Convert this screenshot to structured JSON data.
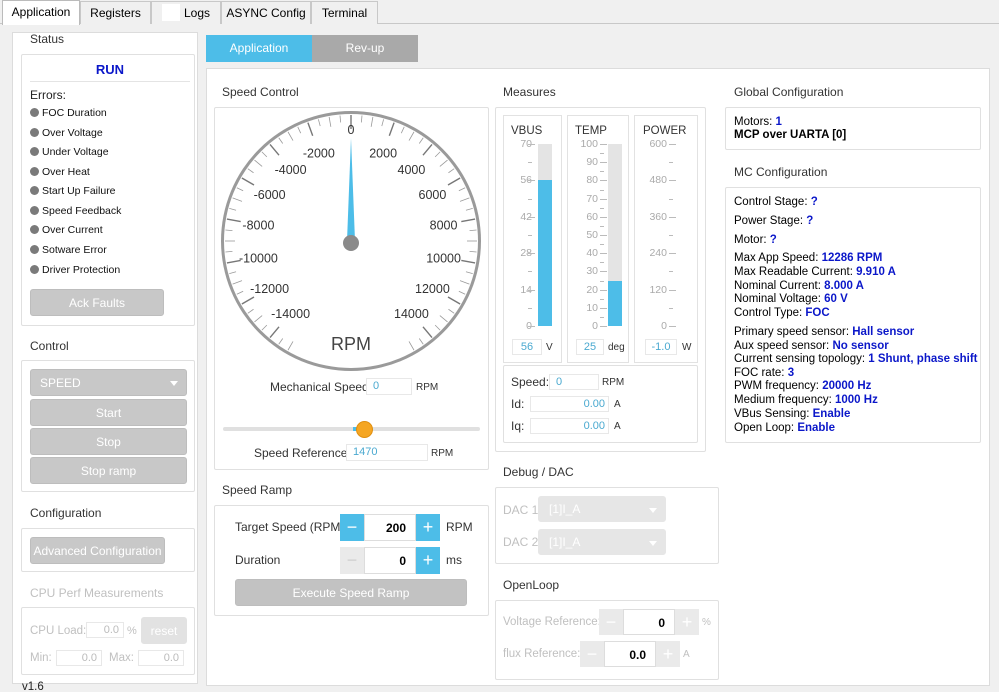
{
  "tabs": [
    "Application",
    "Registers",
    "Logs",
    "ASYNC Config",
    "Terminal"
  ],
  "active_tab": 0,
  "status": {
    "title": "Status",
    "state": "RUN",
    "errors_label": "Errors:",
    "errors": [
      "FOC Duration",
      "Over Voltage",
      "Under Voltage",
      "Over Heat",
      "Start Up Failure",
      "Speed Feedback",
      "Over Current",
      "Sotware Error",
      "Driver Protection"
    ],
    "ack_label": "Ack Faults"
  },
  "control": {
    "title": "Control",
    "mode": "SPEED",
    "start": "Start",
    "stop": "Stop",
    "stop_ramp": "Stop ramp"
  },
  "configuration": {
    "title": "Configuration",
    "advanced": "Advanced Configuration"
  },
  "cpu": {
    "title": "CPU Perf Measurements",
    "load_label": "CPU Load:",
    "load_value": "0.0",
    "load_unit": "%",
    "reset": "reset",
    "min_label": "Min:",
    "min_value": "0.0",
    "max_label": "Max:",
    "max_value": "0.0"
  },
  "version": "v1.6",
  "panel_tabs": [
    "Application",
    "Rev-up"
  ],
  "speed_control": {
    "title": "Speed Control",
    "gauge_labels": [
      "0",
      "2000",
      "4000",
      "6000",
      "8000",
      "10000",
      "12000",
      "14000",
      "-2000",
      "-4000",
      "-6000",
      "-8000",
      "-10000",
      "-12000",
      "-14000"
    ],
    "gauge_unit": "RPM",
    "needle_value": 0,
    "mech_label": "Mechanical Speed:",
    "mech_value": "0",
    "mech_unit": "RPM",
    "slider_fraction": 0.55,
    "ref_label": "Speed Reference:",
    "ref_value": "1470",
    "ref_unit": "RPM"
  },
  "speed_ramp": {
    "title": "Speed Ramp",
    "target_label": "Target Speed (RPM)",
    "target_value": "200",
    "target_unit": "RPM",
    "duration_label": "Duration",
    "duration_value": "0",
    "duration_unit": "ms",
    "execute": "Execute Speed Ramp"
  },
  "measures": {
    "title": "Measures",
    "meters": [
      {
        "name": "VBUS",
        "ticks": [
          "70",
          "56",
          "42",
          "28",
          "14",
          "0"
        ],
        "max": 70,
        "fill_value": 56,
        "value": "56",
        "unit": "V"
      },
      {
        "name": "TEMP",
        "ticks": [
          "100",
          "90",
          "80",
          "70",
          "60",
          "50",
          "40",
          "30",
          "20",
          "10",
          "0"
        ],
        "max": 100,
        "fill_value": 25,
        "value": "25",
        "unit": "deg"
      },
      {
        "name": "POWER",
        "ticks": [
          "600",
          "480",
          "360",
          "240",
          "120",
          "0"
        ],
        "max": 600,
        "fill_value": 0,
        "value": "-1.0",
        "unit": "W"
      }
    ],
    "speed_label": "Speed:",
    "speed_value": "0",
    "speed_unit": "RPM",
    "id_label": "Id:",
    "id_value": "0.00",
    "id_unit": "A",
    "iq_label": "Iq:",
    "iq_value": "0.00",
    "iq_unit": "A"
  },
  "debug": {
    "title": "Debug / DAC",
    "dac1_label": "DAC 1",
    "dac1_value": "[1]I_A",
    "dac2_label": "DAC 2",
    "dac2_value": "[1]I_A"
  },
  "openloop": {
    "title": "OpenLoop",
    "voltage_label": "Voltage Reference:",
    "voltage_value": "0",
    "voltage_unit": "%",
    "flux_label": "flux Reference:",
    "flux_value": "0.0",
    "flux_unit": "A"
  },
  "global_config": {
    "title": "Global Configuration",
    "motors_label": "Motors:",
    "motors_value": "1",
    "link": "MCP over UARTA [0]"
  },
  "mc_config": {
    "title": "MC Configuration",
    "rows": [
      {
        "label": "Control Stage:",
        "value": "?"
      },
      {
        "label": "Power Stage:",
        "value": "?"
      },
      {
        "label": "Motor:",
        "value": "?"
      },
      {
        "label": "Max App Speed:",
        "value": "12286 RPM"
      },
      {
        "label": "Max Readable Current:",
        "value": "9.910 A"
      },
      {
        "label": "Nominal Current:",
        "value": "8.000 A"
      },
      {
        "label": "Nominal Voltage:",
        "value": "60 V"
      },
      {
        "label": "Control Type:",
        "value": "FOC"
      },
      {
        "label": "Primary speed sensor:",
        "value": "Hall sensor"
      },
      {
        "label": "Aux speed sensor:",
        "value": "No sensor"
      },
      {
        "label": "Current sensing topology:",
        "value": "1 Shunt, phase shift"
      },
      {
        "label": "FOC rate:",
        "value": "3"
      },
      {
        "label": "PWM frequency:",
        "value": "20000 Hz"
      },
      {
        "label": "Medium frequency:",
        "value": "1000 Hz"
      },
      {
        "label": "VBus Sensing:",
        "value": "Enable"
      },
      {
        "label": "Open Loop:",
        "value": "Enable"
      }
    ]
  },
  "colors": {
    "accent": "#4dbde8",
    "knob": "#f5a623",
    "value_blue": "#0b17c9"
  }
}
